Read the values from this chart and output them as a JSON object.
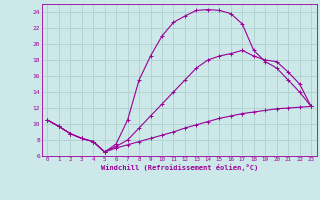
{
  "xlabel": "Windchill (Refroidissement éolien,°C)",
  "background_color": "#cce8e8",
  "grid_color": "#aacccc",
  "line_color": "#990099",
  "xlim": [
    -0.5,
    23.5
  ],
  "ylim": [
    6,
    25
  ],
  "xticks": [
    0,
    1,
    2,
    3,
    4,
    5,
    6,
    7,
    8,
    9,
    10,
    11,
    12,
    13,
    14,
    15,
    16,
    17,
    18,
    19,
    20,
    21,
    22,
    23
  ],
  "yticks": [
    6,
    8,
    10,
    12,
    14,
    16,
    18,
    20,
    22,
    24
  ],
  "line1_x": [
    0,
    1,
    2,
    3,
    4,
    5,
    6,
    7,
    8,
    9,
    10,
    11,
    12,
    13,
    14,
    15,
    16,
    17,
    18,
    19,
    20,
    21,
    22,
    23
  ],
  "line1_y": [
    10.5,
    9.7,
    8.8,
    8.2,
    7.8,
    6.5,
    7.5,
    10.5,
    15.5,
    18.5,
    21.0,
    22.7,
    23.5,
    24.2,
    24.3,
    24.2,
    23.8,
    22.5,
    19.2,
    17.8,
    17.0,
    15.5,
    14.0,
    12.2
  ],
  "line2_x": [
    0,
    1,
    2,
    3,
    4,
    5,
    6,
    7,
    8,
    9,
    10,
    11,
    12,
    13,
    14,
    15,
    16,
    17,
    18,
    19,
    20,
    21,
    22,
    23
  ],
  "line2_y": [
    10.5,
    9.7,
    8.8,
    8.2,
    7.8,
    6.5,
    7.2,
    8.0,
    9.5,
    11.0,
    12.5,
    14.0,
    15.5,
    17.0,
    18.0,
    18.5,
    18.8,
    19.2,
    18.5,
    18.0,
    17.8,
    16.5,
    15.0,
    12.2
  ],
  "line3_x": [
    0,
    1,
    2,
    3,
    4,
    5,
    6,
    7,
    8,
    9,
    10,
    11,
    12,
    13,
    14,
    15,
    16,
    17,
    18,
    19,
    20,
    21,
    22,
    23
  ],
  "line3_y": [
    10.5,
    9.7,
    8.8,
    8.2,
    7.8,
    6.5,
    7.0,
    7.4,
    7.8,
    8.2,
    8.6,
    9.0,
    9.5,
    9.9,
    10.3,
    10.7,
    11.0,
    11.3,
    11.5,
    11.7,
    11.9,
    12.0,
    12.1,
    12.2
  ]
}
